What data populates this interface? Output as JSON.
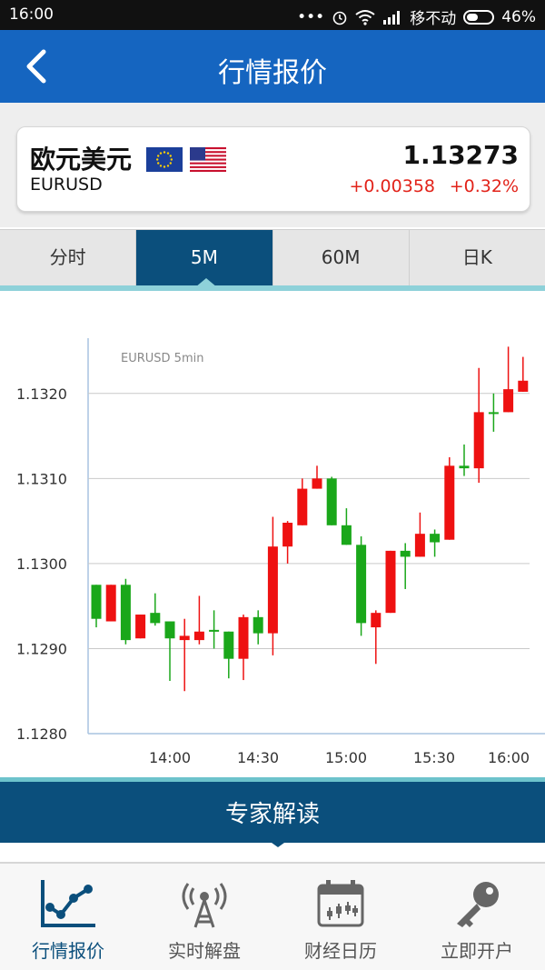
{
  "status_bar": {
    "time": "16:00",
    "dots": "•••",
    "carrier": "移不动",
    "battery": "46%"
  },
  "header": {
    "title": "行情报价",
    "back_icon": "chevron-left-icon"
  },
  "quote": {
    "name": "欧元美元",
    "code": "EURUSD",
    "price": "1.13273",
    "change": "+0.00358",
    "change_percent": "+0.32%",
    "flags": [
      "eu-flag-icon",
      "us-flag-icon"
    ],
    "up_color": "#e2231a"
  },
  "tabs": [
    {
      "label": "分时",
      "active": false
    },
    {
      "label": "5M",
      "active": true
    },
    {
      "label": "60M",
      "active": false
    },
    {
      "label": "日K",
      "active": false
    }
  ],
  "chart_data": {
    "type": "candlestick",
    "title": "EURUSD 5min",
    "y_ticks": [
      "1.1320",
      "1.1310",
      "1.1300",
      "1.1290",
      "1.1280"
    ],
    "x_ticks": [
      "14:00",
      "14:30",
      "15:00",
      "15:30",
      "16:00"
    ],
    "ylim": [
      1.128,
      1.1327
    ],
    "colors": {
      "up": "#ee1111",
      "down": "#1aa71a"
    },
    "candles": [
      {
        "o": 1.12975,
        "c": 1.12935,
        "h": 1.12975,
        "l": 1.12925
      },
      {
        "o": 1.12932,
        "c": 1.12975,
        "h": 1.12975,
        "l": 1.12932
      },
      {
        "o": 1.12975,
        "c": 1.1291,
        "h": 1.12982,
        "l": 1.12905
      },
      {
        "o": 1.12912,
        "c": 1.1294,
        "h": 1.1294,
        "l": 1.12912
      },
      {
        "o": 1.12942,
        "c": 1.1293,
        "h": 1.12965,
        "l": 1.12927
      },
      {
        "o": 1.12932,
        "c": 1.12912,
        "h": 1.12932,
        "l": 1.12862
      },
      {
        "o": 1.1291,
        "c": 1.12915,
        "h": 1.12935,
        "l": 1.1285
      },
      {
        "o": 1.1291,
        "c": 1.1292,
        "h": 1.12962,
        "l": 1.12905
      },
      {
        "o": 1.12922,
        "c": 1.1292,
        "h": 1.12945,
        "l": 1.129
      },
      {
        "o": 1.1292,
        "c": 1.12888,
        "h": 1.1292,
        "l": 1.12865
      },
      {
        "o": 1.12888,
        "c": 1.12937,
        "h": 1.1294,
        "l": 1.12863
      },
      {
        "o": 1.12937,
        "c": 1.12918,
        "h": 1.12945,
        "l": 1.12905
      },
      {
        "o": 1.12918,
        "c": 1.1302,
        "h": 1.13055,
        "l": 1.12892
      },
      {
        "o": 1.1302,
        "c": 1.13048,
        "h": 1.1305,
        "l": 1.13
      },
      {
        "o": 1.13045,
        "c": 1.13088,
        "h": 1.131,
        "l": 1.13045
      },
      {
        "o": 1.13088,
        "c": 1.131,
        "h": 1.13115,
        "l": 1.13088
      },
      {
        "o": 1.131,
        "c": 1.13045,
        "h": 1.13102,
        "l": 1.13045
      },
      {
        "o": 1.13045,
        "c": 1.13022,
        "h": 1.13065,
        "l": 1.13022
      },
      {
        "o": 1.13022,
        "c": 1.1293,
        "h": 1.13032,
        "l": 1.12915
      },
      {
        "o": 1.12925,
        "c": 1.12942,
        "h": 1.12945,
        "l": 1.12882
      },
      {
        "o": 1.12942,
        "c": 1.13015,
        "h": 1.13015,
        "l": 1.12942
      },
      {
        "o": 1.13015,
        "c": 1.13008,
        "h": 1.13024,
        "l": 1.1297
      },
      {
        "o": 1.13008,
        "c": 1.13035,
        "h": 1.1306,
        "l": 1.13008
      },
      {
        "o": 1.13035,
        "c": 1.13025,
        "h": 1.1304,
        "l": 1.13008
      },
      {
        "o": 1.13028,
        "c": 1.13115,
        "h": 1.13125,
        "l": 1.13028
      },
      {
        "o": 1.13115,
        "c": 1.13112,
        "h": 1.1314,
        "l": 1.13103
      },
      {
        "o": 1.13112,
        "c": 1.13178,
        "h": 1.1323,
        "l": 1.13095
      },
      {
        "o": 1.13178,
        "c": 1.13178,
        "h": 1.132,
        "l": 1.13155
      },
      {
        "o": 1.13178,
        "c": 1.13205,
        "h": 1.13255,
        "l": 1.13178
      },
      {
        "o": 1.13202,
        "c": 1.13215,
        "h": 1.13243,
        "l": 1.13202
      }
    ]
  },
  "expert": {
    "label": "专家解读"
  },
  "bottom_nav": [
    {
      "label": "行情报价",
      "icon": "trend-chart-icon",
      "active": true
    },
    {
      "label": "实时解盘",
      "icon": "broadcast-tower-icon",
      "active": false
    },
    {
      "label": "财经日历",
      "icon": "calendar-icon",
      "active": false
    },
    {
      "label": "立即开户",
      "icon": "key-icon",
      "active": false
    }
  ]
}
